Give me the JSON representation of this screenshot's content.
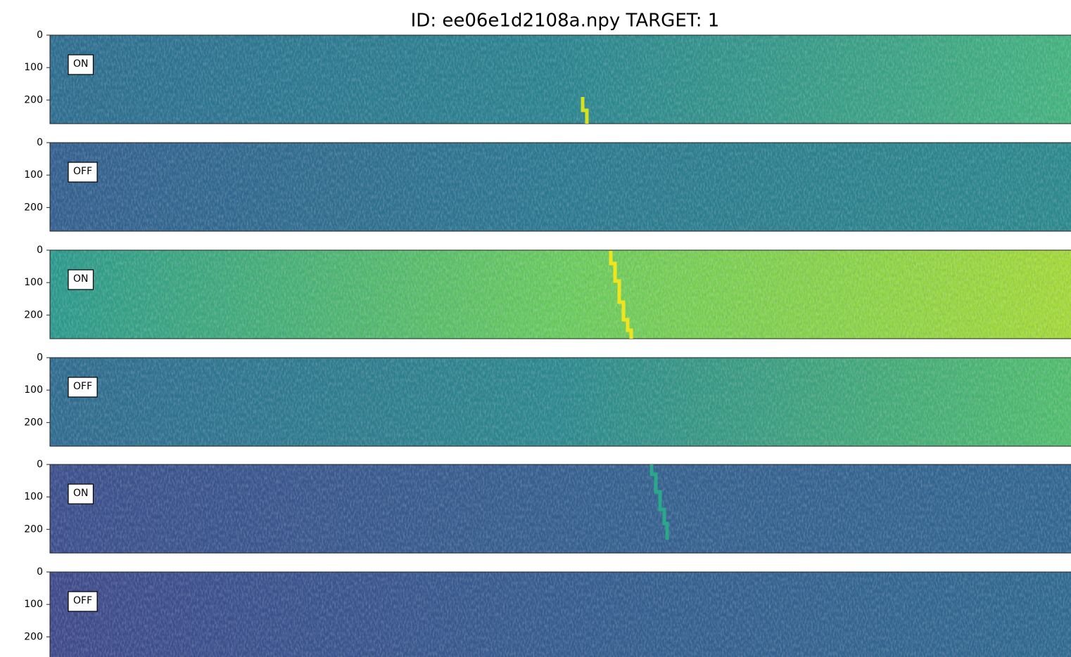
{
  "title": "ID: ee06e1d2108a.npy TARGET: 1",
  "chart_data": [
    {
      "type": "heatmap",
      "label": "ON",
      "ylim": [
        0,
        273
      ],
      "yticks": [
        0,
        100,
        200
      ],
      "colors": [
        "#2d6e8e",
        "#2a858e",
        "#44b67c"
      ]
    },
    {
      "type": "heatmap",
      "label": "OFF",
      "ylim": [
        0,
        273
      ],
      "yticks": [
        0,
        100,
        200
      ],
      "colors": [
        "#33608d",
        "#2b7a8e",
        "#2b8a8a"
      ]
    },
    {
      "type": "heatmap",
      "label": "ON",
      "ylim": [
        0,
        273
      ],
      "yticks": [
        0,
        100,
        200
      ],
      "colors": [
        "#2a9a8a",
        "#6acd5b",
        "#a5db36"
      ]
    },
    {
      "type": "heatmap",
      "label": "OFF",
      "ylim": [
        0,
        273
      ],
      "yticks": [
        0,
        100,
        200
      ],
      "colors": [
        "#2f6c8e",
        "#2c8a8c",
        "#52c06a"
      ]
    },
    {
      "type": "heatmap",
      "label": "ON",
      "ylim": [
        0,
        273
      ],
      "yticks": [
        0,
        100,
        200
      ],
      "colors": [
        "#3c4f8a",
        "#35608d",
        "#30678e"
      ]
    },
    {
      "type": "heatmap",
      "label": "OFF",
      "ylim": [
        0,
        273
      ],
      "yticks": [
        0,
        100,
        200
      ],
      "colors": [
        "#3e4a89",
        "#355d8d",
        "#2f6a8e"
      ]
    }
  ]
}
